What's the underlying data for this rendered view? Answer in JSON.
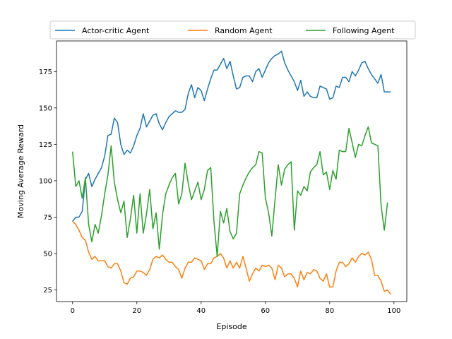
{
  "chart_data": {
    "type": "line",
    "title": "",
    "xlabel": "Episode",
    "ylabel": "Moving Average Reward",
    "xlim": [
      -5,
      104
    ],
    "ylim": [
      17,
      196
    ],
    "xticks": [
      0,
      20,
      40,
      60,
      80,
      100
    ],
    "yticks": [
      25,
      50,
      75,
      100,
      125,
      150,
      175
    ],
    "grid": false,
    "legend": "top-center",
    "series": [
      {
        "name": "Actor-critic Agent",
        "color": "#1f77b4",
        "x": [
          0,
          1,
          2,
          3,
          4,
          5,
          6,
          7,
          8,
          9,
          10,
          11,
          12,
          13,
          14,
          15,
          16,
          17,
          18,
          19,
          20,
          21,
          22,
          23,
          24,
          25,
          26,
          27,
          28,
          29,
          30,
          31,
          32,
          33,
          34,
          35,
          36,
          37,
          38,
          39,
          40,
          41,
          42,
          43,
          44,
          45,
          46,
          47,
          48,
          49,
          50,
          51,
          52,
          53,
          54,
          55,
          56,
          57,
          58,
          59,
          60,
          61,
          62,
          63,
          64,
          65,
          66,
          67,
          68,
          69,
          70,
          71,
          72,
          73,
          74,
          75,
          76,
          77,
          78,
          79,
          80,
          81,
          82,
          83,
          84,
          85,
          86,
          87,
          88,
          89,
          90,
          91,
          92,
          93,
          94,
          95,
          96,
          97,
          98,
          99
        ],
        "y": [
          72,
          75,
          75,
          79,
          101,
          105,
          96,
          101,
          105,
          109,
          117,
          131,
          132,
          143,
          140,
          125,
          118,
          121,
          119,
          124,
          131,
          136,
          146,
          137,
          141,
          145,
          146,
          139,
          135,
          140,
          144,
          146,
          148,
          147,
          147,
          149,
          160,
          166,
          157,
          164,
          162,
          155,
          163,
          170,
          176,
          176,
          180,
          184,
          177,
          182,
          172,
          163,
          164,
          171,
          172,
          172,
          168,
          175,
          177,
          171,
          176,
          181,
          184,
          186,
          187,
          189,
          181,
          176,
          172,
          168,
          162,
          169,
          158,
          161,
          158,
          157,
          157,
          165,
          164,
          163,
          156,
          157,
          165,
          164,
          171,
          171,
          168,
          175,
          172,
          176,
          181,
          182,
          177,
          173,
          170,
          167,
          173,
          161,
          161,
          161
        ]
      },
      {
        "name": "Random Agent",
        "color": "#ff7f0e",
        "x": [
          0,
          1,
          2,
          3,
          4,
          5,
          6,
          7,
          8,
          9,
          10,
          11,
          12,
          13,
          14,
          15,
          16,
          17,
          18,
          19,
          20,
          21,
          22,
          23,
          24,
          25,
          26,
          27,
          28,
          29,
          30,
          31,
          32,
          33,
          34,
          35,
          36,
          37,
          38,
          39,
          40,
          41,
          42,
          43,
          44,
          45,
          46,
          47,
          48,
          49,
          50,
          51,
          52,
          53,
          54,
          55,
          56,
          57,
          58,
          59,
          60,
          61,
          62,
          63,
          64,
          65,
          66,
          67,
          68,
          69,
          70,
          71,
          72,
          73,
          74,
          75,
          76,
          77,
          78,
          79,
          80,
          81,
          82,
          83,
          84,
          85,
          86,
          87,
          88,
          89,
          90,
          91,
          92,
          93,
          94,
          95,
          96,
          97,
          98,
          99
        ],
        "y": [
          72,
          70,
          66,
          61,
          59,
          51,
          46,
          48,
          45,
          45,
          45,
          41,
          40,
          43,
          43,
          38,
          30,
          29,
          33,
          34,
          38,
          38,
          37,
          35,
          39,
          46,
          48,
          47,
          49,
          46,
          44,
          44,
          41,
          39,
          33,
          40,
          44,
          44,
          47,
          46,
          45,
          39,
          43,
          43,
          47,
          48,
          50,
          47,
          40,
          45,
          40,
          44,
          40,
          48,
          40,
          31,
          36,
          40,
          38,
          42,
          41,
          42,
          40,
          32,
          42,
          40,
          34,
          36,
          36,
          33,
          27,
          38,
          32,
          37,
          36,
          39,
          38,
          33,
          31,
          36,
          27,
          27,
          38,
          44,
          44,
          41,
          43,
          47,
          44,
          48,
          50,
          49,
          51,
          46,
          35,
          35,
          31,
          24,
          25,
          22
        ]
      },
      {
        "name": "Following Agent",
        "color": "#2ca02c",
        "x": [
          0,
          1,
          2,
          3,
          4,
          5,
          6,
          7,
          8,
          9,
          10,
          11,
          12,
          13,
          14,
          15,
          16,
          17,
          18,
          19,
          20,
          21,
          22,
          23,
          24,
          25,
          26,
          27,
          28,
          29,
          30,
          31,
          32,
          33,
          34,
          35,
          36,
          37,
          38,
          39,
          40,
          41,
          42,
          43,
          44,
          45,
          46,
          47,
          48,
          49,
          50,
          51,
          52,
          53,
          54,
          55,
          56,
          57,
          58,
          59,
          60,
          61,
          62,
          63,
          64,
          65,
          66,
          67,
          68,
          69,
          70,
          71,
          72,
          73,
          74,
          75,
          76,
          77,
          78,
          79,
          80,
          81,
          82,
          83,
          84,
          85,
          86,
          87,
          88,
          89,
          90,
          91,
          92,
          93,
          94,
          95,
          96,
          97,
          98,
          99
        ],
        "y": [
          120,
          96,
          100,
          88,
          102,
          70,
          58,
          70,
          64,
          76,
          91,
          104,
          124,
          99,
          87,
          78,
          86,
          61,
          74,
          90,
          64,
          91,
          64,
          77,
          94,
          67,
          78,
          53,
          77,
          91,
          97,
          102,
          105,
          84,
          91,
          112,
          98,
          87,
          93,
          99,
          87,
          94,
          107,
          109,
          72,
          48,
          79,
          71,
          81,
          65,
          60,
          64,
          91,
          97,
          102,
          106,
          109,
          111,
          120,
          119,
          88,
          78,
          62,
          87,
          111,
          97,
          108,
          111,
          113,
          66,
          93,
          90,
          96,
          93,
          106,
          109,
          111,
          120,
          104,
          106,
          94,
          107,
          101,
          121,
          120,
          120,
          136,
          126,
          116,
          125,
          124,
          131,
          137,
          126,
          125,
          124,
          83,
          66,
          85,
          null
        ]
      }
    ]
  }
}
